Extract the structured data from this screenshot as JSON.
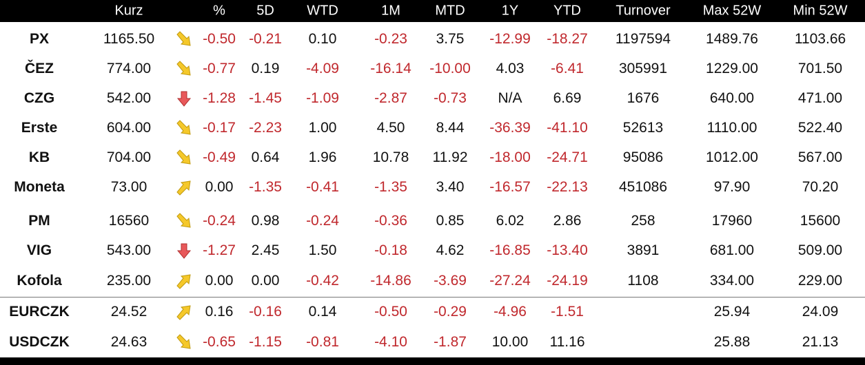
{
  "table": {
    "header": [
      "Kurz",
      "%",
      "5D",
      "WTD",
      "1M",
      "MTD",
      "1Y",
      "YTD",
      "Turnover",
      "Max 52W",
      "Min 52W"
    ],
    "stocks": [
      {
        "name": "PX",
        "cells": [
          "1165.50",
          "-0.50",
          "-0.21",
          "0.10",
          "-0.23",
          "3.75",
          "-12.99",
          "-18.27",
          "1197594",
          "1489.76",
          "1103.66"
        ]
      },
      {
        "name": "ČEZ",
        "cells": [
          "774.00",
          "-0.77",
          "0.19",
          "-4.09",
          "-16.14",
          "-10.00",
          "4.03",
          "-6.41",
          "305991",
          "1229.00",
          "701.50"
        ]
      },
      {
        "name": "CZG",
        "cells": [
          "542.00",
          "-1.28",
          "-1.45",
          "-1.09",
          "-2.87",
          "-0.73",
          "N/A",
          "6.69",
          "1676",
          "640.00",
          "471.00"
        ]
      },
      {
        "name": "Erste",
        "cells": [
          "604.00",
          "-0.17",
          "-2.23",
          "1.00",
          "4.50",
          "8.44",
          "-36.39",
          "-41.10",
          "52613",
          "1110.00",
          "522.40"
        ]
      },
      {
        "name": "KB",
        "cells": [
          "704.00",
          "-0.49",
          "0.64",
          "1.96",
          "10.78",
          "11.92",
          "-18.00",
          "-24.71",
          "95086",
          "1012.00",
          "567.00"
        ]
      },
      {
        "name": "Moneta",
        "cells": [
          "73.00",
          "0.00",
          "-1.35",
          "-0.41",
          "-1.35",
          "3.40",
          "-16.57",
          "-22.13",
          "451086",
          "97.90",
          "70.20"
        ]
      },
      {
        "name": "PM",
        "cells": [
          "16560",
          "-0.24",
          "0.98",
          "-0.24",
          "-0.36",
          "0.85",
          "6.02",
          "2.86",
          "258",
          "17960",
          "15600"
        ]
      },
      {
        "name": "VIG",
        "cells": [
          "543.00",
          "-1.27",
          "2.45",
          "1.50",
          "-0.18",
          "4.62",
          "-16.85",
          "-13.40",
          "3891",
          "681.00",
          "509.00"
        ]
      },
      {
        "name": "Kofola",
        "cells": [
          "235.00",
          "0.00",
          "0.00",
          "-0.42",
          "-14.86",
          "-3.69",
          "-27.24",
          "-24.19",
          "1108",
          "334.00",
          "229.00"
        ]
      }
    ],
    "currencies": [
      {
        "name": "EURCZK",
        "cells": [
          "24.52",
          "0.16",
          "-0.16",
          "0.14",
          "-0.50",
          "-0.29",
          "-4.96",
          "-1.51",
          null,
          "25.94",
          "24.09"
        ]
      },
      {
        "name": "USDCZK",
        "cells": [
          "24.63",
          "-0.65",
          "-1.15",
          "-0.81",
          "-4.10",
          "-1.87",
          "10.00",
          "11.16",
          null,
          "25.88",
          "21.13"
        ]
      }
    ]
  }
}
